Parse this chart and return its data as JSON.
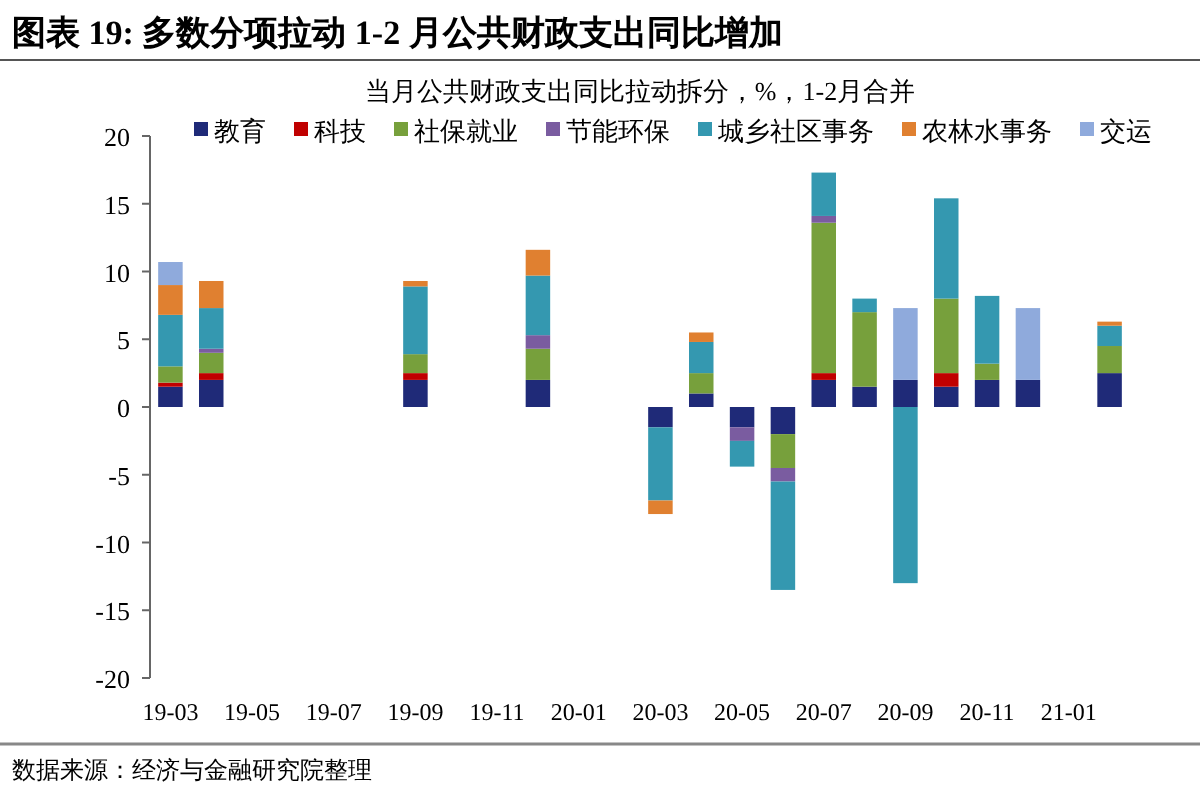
{
  "chart_data": {
    "type": "bar",
    "stacked": true,
    "title": "图表 19:  多数分项拉动 1-2 月公共财政支出同比增加",
    "subtitle": "当月公共财政支出同比拉动拆分，%，1-2月合并",
    "annotations": [
      "数据来源：经济与金融研究院整理"
    ],
    "categories": [
      "19-03",
      null,
      "19-05",
      null,
      "19-07",
      null,
      "19-09",
      null,
      "19-11",
      null,
      "20-01",
      null,
      "20-03",
      null,
      "20-05",
      null,
      "20-07",
      null,
      "20-09",
      null,
      "20-11",
      null,
      "21-01",
      null
    ],
    "ylim": [
      -20,
      20
    ],
    "yticks": [
      -20,
      -15,
      -10,
      -5,
      0,
      5,
      10,
      15,
      20
    ],
    "grid": false,
    "legend": "top",
    "series": [
      {
        "name": "教育",
        "color": "#1f2a78",
        "values": [
          1.5,
          2,
          null,
          null,
          null,
          null,
          2,
          null,
          null,
          2,
          null,
          null,
          -1.5,
          1,
          -1.5,
          -2,
          2,
          1.5,
          2,
          1.5,
          2,
          2,
          null,
          2.5
        ]
      },
      {
        "name": "科技",
        "color": "#c00000",
        "values": [
          0.3,
          0.5,
          null,
          null,
          null,
          null,
          0.5,
          null,
          null,
          0,
          null,
          null,
          0,
          0,
          0,
          0,
          0.5,
          0,
          0,
          1,
          0,
          0,
          null,
          0
        ]
      },
      {
        "name": "社保就业",
        "color": "#77a03c",
        "values": [
          1.2,
          1.5,
          null,
          null,
          null,
          null,
          1.4,
          null,
          null,
          2.3,
          null,
          null,
          0,
          1.5,
          0,
          -2.5,
          11.1,
          5.5,
          0,
          5.5,
          1.2,
          0,
          null,
          2
        ]
      },
      {
        "name": "节能环保",
        "color": "#7a5ca0",
        "values": [
          0,
          0.3,
          null,
          null,
          null,
          null,
          0,
          null,
          null,
          1,
          null,
          null,
          0,
          0,
          -1,
          -1,
          0.5,
          0,
          0,
          0,
          0,
          0,
          null,
          0
        ]
      },
      {
        "name": "城乡社区事务",
        "color": "#3498b0",
        "values": [
          3.8,
          3,
          null,
          null,
          null,
          null,
          5,
          null,
          null,
          4.4,
          null,
          null,
          -5.4,
          2.3,
          -1.9,
          -8,
          3.2,
          1,
          -13,
          7.4,
          5,
          0,
          null,
          1.5
        ]
      },
      {
        "name": "农林水事务",
        "color": "#e08030",
        "values": [
          2.2,
          2,
          null,
          null,
          null,
          null,
          0.4,
          null,
          null,
          1.9,
          null,
          null,
          -1,
          0.7,
          0,
          0,
          0,
          0,
          0,
          0,
          0,
          0,
          null,
          0.3
        ]
      },
      {
        "name": "交运",
        "color": "#8faadc",
        "values": [
          1.7,
          0,
          null,
          null,
          null,
          null,
          0,
          null,
          null,
          0,
          null,
          null,
          0,
          0,
          0,
          0,
          0,
          0,
          5.3,
          0,
          0,
          5.3,
          null,
          0
        ]
      }
    ]
  }
}
